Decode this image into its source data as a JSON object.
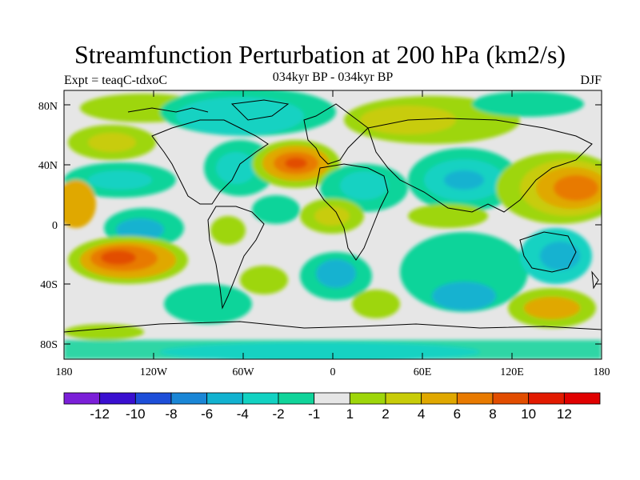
{
  "title": "Streamfunction Perturbation at 200 hPa (km2/s)",
  "subtitle_left": "Expt = teaqC-tdxoC",
  "subtitle_center": "034kyr BP - 034kyr BP",
  "subtitle_right": "DJF",
  "lat_ticks": [
    "80N",
    "40N",
    "0",
    "40S",
    "80S"
  ],
  "lon_ticks": [
    "180",
    "120W",
    "60W",
    "0",
    "60E",
    "120E",
    "180"
  ],
  "colorbar": {
    "labels": [
      "-12",
      "-10",
      "-8",
      "-6",
      "-4",
      "-2",
      "-1",
      "1",
      "2",
      "4",
      "6",
      "8",
      "10",
      "12"
    ],
    "colors": [
      "#7b1fd8",
      "#3a0fd0",
      "#1d4ed8",
      "#1a86d6",
      "#12b2d0",
      "#12d2c2",
      "#10d49a",
      "#e6e6e6",
      "#9ed60a",
      "#c8cc08",
      "#e0a800",
      "#e87a00",
      "#e24d00",
      "#e21a00",
      "#e00000"
    ]
  },
  "chart_data": {
    "type": "heatmap",
    "title": "Streamfunction Perturbation at 200 hPa (km2/s)",
    "variable": "streamfunction perturbation",
    "units": "km2/s",
    "level": "200 hPa",
    "season": "DJF",
    "x_range": [
      -180,
      180
    ],
    "y_range": [
      -90,
      90
    ],
    "contour_levels": [
      -12,
      -10,
      -8,
      -6,
      -4,
      -2,
      -1,
      1,
      2,
      4,
      6,
      8,
      10,
      12
    ]
  }
}
